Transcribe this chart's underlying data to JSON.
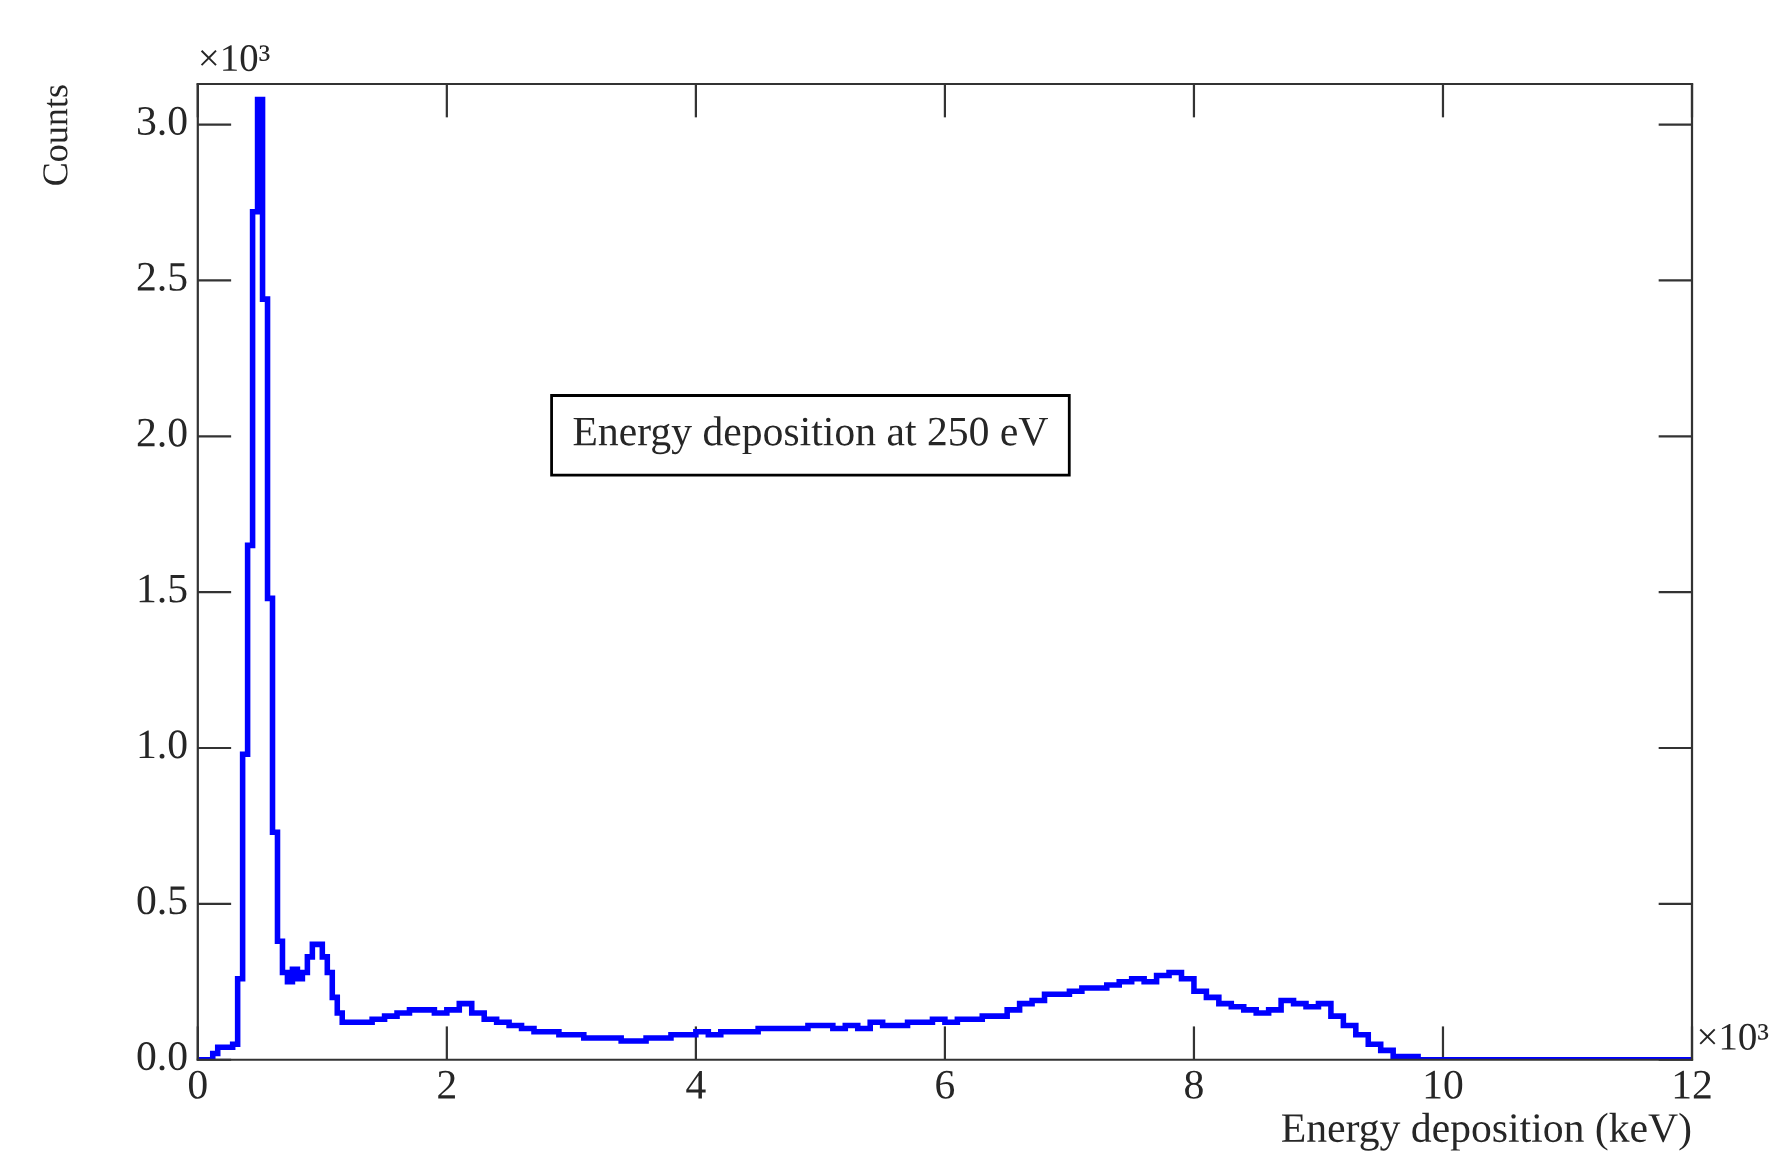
{
  "chart_data": {
    "type": "histogram",
    "xlabel": "Energy deposition (keV)",
    "ylabel": "Counts",
    "color": "#0000ff",
    "bins": [
      0,
      0.04,
      0.08,
      0.12,
      0.16,
      0.2,
      0.24,
      0.28,
      0.32,
      0.36,
      0.4,
      0.44,
      0.48,
      0.52,
      0.56,
      0.6,
      0.64,
      0.68,
      0.72,
      0.76,
      0.8,
      0.84,
      0.88,
      0.92,
      0.96,
      1.0,
      1.04,
      1.08,
      1.12,
      1.16,
      1.2,
      1.3,
      1.4,
      1.5,
      1.6,
      1.7,
      1.8,
      1.9,
      2.0,
      2.1,
      2.2,
      2.3,
      2.4,
      2.5,
      2.6,
      2.7,
      2.8,
      2.9,
      3.0,
      3.1,
      3.2,
      3.3,
      3.4,
      3.5,
      3.6,
      3.7,
      3.8,
      3.9,
      4.0,
      4.1,
      4.2,
      4.3,
      4.4,
      4.5,
      4.6,
      4.7,
      4.8,
      4.9,
      5.0,
      5.1,
      5.2,
      5.3,
      5.4,
      5.5,
      5.6,
      5.7,
      5.8,
      5.9,
      6.0,
      6.1,
      6.2,
      6.3,
      6.4,
      6.5,
      6.6,
      6.7,
      6.8,
      6.9,
      7.0,
      7.1,
      7.2,
      7.3,
      7.4,
      7.5,
      7.6,
      7.7,
      7.8,
      7.9,
      8.0,
      8.1,
      8.2,
      8.3,
      8.4,
      8.5,
      8.6,
      8.7,
      8.8,
      8.9,
      9.0,
      9.1,
      9.2,
      9.3,
      9.4,
      9.5,
      9.6,
      9.7,
      9.8,
      9.9,
      10.0,
      12
    ],
    "values": [
      0.0,
      0.0,
      0.0,
      0.02,
      0.04,
      0.04,
      0.04,
      0.05,
      0.26,
      0.98,
      1.65,
      2.72,
      3.08,
      2.44,
      1.48,
      0.73,
      0.38,
      0.28,
      0.25,
      0.29,
      0.26,
      0.28,
      0.33,
      0.37,
      0.37,
      0.33,
      0.28,
      0.2,
      0.15,
      0.12,
      0.12,
      0.12,
      0.13,
      0.14,
      0.15,
      0.16,
      0.16,
      0.15,
      0.16,
      0.18,
      0.15,
      0.13,
      0.12,
      0.11,
      0.1,
      0.09,
      0.09,
      0.08,
      0.08,
      0.07,
      0.07,
      0.07,
      0.06,
      0.06,
      0.07,
      0.07,
      0.08,
      0.08,
      0.09,
      0.08,
      0.09,
      0.09,
      0.09,
      0.1,
      0.1,
      0.1,
      0.1,
      0.11,
      0.11,
      0.1,
      0.11,
      0.1,
      0.12,
      0.11,
      0.11,
      0.12,
      0.12,
      0.13,
      0.12,
      0.13,
      0.13,
      0.14,
      0.14,
      0.16,
      0.18,
      0.19,
      0.21,
      0.21,
      0.22,
      0.23,
      0.23,
      0.24,
      0.25,
      0.26,
      0.25,
      0.27,
      0.28,
      0.26,
      0.22,
      0.2,
      0.18,
      0.17,
      0.16,
      0.15,
      0.16,
      0.19,
      0.18,
      0.17,
      0.18,
      0.14,
      0.11,
      0.08,
      0.05,
      0.03,
      0.01,
      0.01,
      0.0,
      0.0,
      0.0
    ],
    "xlim": [
      0,
      12
    ],
    "ylim": [
      0,
      3.13
    ],
    "xticks": [
      0,
      2,
      4,
      6,
      8,
      10,
      12
    ],
    "yticks": [
      {
        "value": 0,
        "label": "0.0"
      },
      0.5,
      {
        "value": 1,
        "label": "1.0"
      },
      1.5,
      {
        "value": 2,
        "label": "2.0"
      },
      2.5,
      {
        "value": 3,
        "label": "3.0"
      }
    ],
    "grid": false,
    "annotations": [
      "×10³",
      "×10³",
      "Energy deposition at 250 eV"
    ]
  }
}
